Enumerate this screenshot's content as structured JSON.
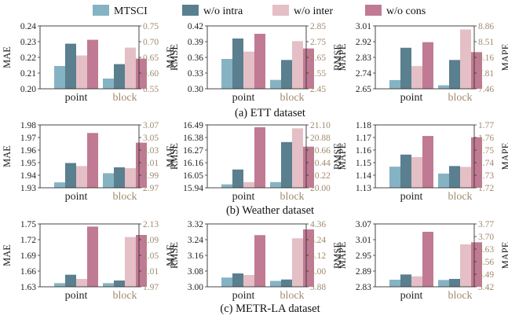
{
  "legend": [
    {
      "label": "MTSCI",
      "color": "#85b3c3"
    },
    {
      "label": "w/o intra",
      "color": "#5a7f8f"
    },
    {
      "label": "w/o inter",
      "color": "#e4bfc6"
    },
    {
      "label": "w/o cons",
      "color": "#c17a93"
    }
  ],
  "colors": {
    "left_axis": "#222222",
    "right_axis": "#a08a6e",
    "block_tick": "#a08a6e"
  },
  "datasets": [
    {
      "caption": "(a) ETT dataset"
    },
    {
      "caption": "(b) Weather dataset"
    },
    {
      "caption": "(c) METR-LA dataset"
    }
  ],
  "chart_data": [
    {
      "type": "bar",
      "ylabel": "MAE",
      "y2label": "MAE",
      "categories": [
        "point",
        "block"
      ],
      "ylim": [
        0.2,
        0.24
      ],
      "yticks": [
        "0.20",
        "0.21",
        "0.22",
        "0.23",
        "0.24"
      ],
      "y2ticks": [
        "0.55",
        "0.60",
        "0.65",
        "0.70",
        "0.75"
      ],
      "series": [
        {
          "name": "MTSCI",
          "values": [
            0.2145,
            0.2065
          ]
        },
        {
          "name": "w/o intra",
          "values": [
            0.2287,
            0.2157
          ]
        },
        {
          "name": "w/o inter",
          "values": [
            0.2212,
            0.2262
          ]
        },
        {
          "name": "w/o cons",
          "values": [
            0.2312,
            0.2192
          ]
        }
      ]
    },
    {
      "type": "bar",
      "ylabel": "RMSE",
      "y2label": "RMSE",
      "categories": [
        "point",
        "block"
      ],
      "ylim": [
        0.3,
        0.42
      ],
      "yticks": [
        "0.30",
        "0.33",
        "0.36",
        "0.39",
        "0.42"
      ],
      "y2ticks": [
        "2.45",
        "2.55",
        "2.65",
        "2.75",
        "2.85"
      ],
      "series": [
        {
          "name": "MTSCI",
          "values": [
            0.357,
            0.317
          ]
        },
        {
          "name": "w/o intra",
          "values": [
            0.396,
            0.355
          ]
        },
        {
          "name": "w/o inter",
          "values": [
            0.371,
            0.391
          ]
        },
        {
          "name": "w/o cons",
          "values": [
            0.405,
            0.377
          ]
        }
      ]
    },
    {
      "type": "bar",
      "ylabel": "MAPE",
      "y2label": "MAPE",
      "categories": [
        "point",
        "block"
      ],
      "ylim": [
        2.65,
        3.01
      ],
      "yticks": [
        "2.65",
        "2.74",
        "2.83",
        "2.92",
        "3.01"
      ],
      "y2ticks": [
        "7.46",
        "7.81",
        "8.16",
        "8.51",
        "8.86"
      ],
      "series": [
        {
          "name": "MTSCI",
          "values": [
            2.7,
            2.67
          ]
        },
        {
          "name": "w/o intra",
          "values": [
            2.885,
            2.815
          ]
        },
        {
          "name": "w/o inter",
          "values": [
            2.78,
            2.99
          ]
        },
        {
          "name": "w/o cons",
          "values": [
            2.917,
            2.86
          ]
        }
      ]
    },
    {
      "type": "bar",
      "ylabel": "MAE",
      "y2label": "MAE",
      "categories": [
        "point",
        "block"
      ],
      "ylim": [
        1.93,
        1.98
      ],
      "yticks": [
        "1.93",
        "1.94",
        "1.95",
        "1.96",
        "1.97",
        "1.98"
      ],
      "y2ticks": [
        "2.97",
        "2.99",
        "3.01",
        "3.03",
        "3.05",
        "3.07"
      ],
      "series": [
        {
          "name": "MTSCI",
          "values": [
            1.9343,
            1.9416
          ]
        },
        {
          "name": "w/o intra",
          "values": [
            1.9497,
            1.9463
          ]
        },
        {
          "name": "w/o inter",
          "values": [
            1.9473,
            1.9456
          ]
        },
        {
          "name": "w/o cons",
          "values": [
            1.9736,
            1.9659
          ]
        }
      ]
    },
    {
      "type": "bar",
      "ylabel": "RMSE",
      "y2label": "RMSE",
      "categories": [
        "point",
        "block"
      ],
      "ylim": [
        15.94,
        16.49
      ],
      "yticks": [
        "15.94",
        "16.05",
        "16.16",
        "16.27",
        "16.38",
        "16.49"
      ],
      "y2ticks": [
        "20.00",
        "20.22",
        "20.44",
        "20.66",
        "20.88",
        "21.10"
      ],
      "series": [
        {
          "name": "MTSCI",
          "values": [
            15.97,
            15.99
          ]
        },
        {
          "name": "w/o intra",
          "values": [
            16.1,
            16.34
          ]
        },
        {
          "name": "w/o inter",
          "values": [
            15.99,
            16.46
          ]
        },
        {
          "name": "w/o cons",
          "values": [
            16.47,
            16.3
          ]
        }
      ]
    },
    {
      "type": "bar",
      "ylabel": "MAPE",
      "y2label": "MAPE",
      "categories": [
        "point",
        "block"
      ],
      "ylim": [
        1.13,
        1.18
      ],
      "yticks": [
        "1.13",
        "1.14",
        "1.15",
        "1.16",
        "1.17",
        "1.18"
      ],
      "y2ticks": [
        "1.72",
        "1.73",
        "1.74",
        "1.75",
        "1.76",
        "1.77"
      ],
      "series": [
        {
          "name": "MTSCI",
          "values": [
            1.1468,
            1.1413
          ]
        },
        {
          "name": "w/o intra",
          "values": [
            1.1564,
            1.1473
          ]
        },
        {
          "name": "w/o inter",
          "values": [
            1.1544,
            1.1466
          ]
        },
        {
          "name": "w/o cons",
          "values": [
            1.1712,
            1.1702
          ]
        }
      ]
    },
    {
      "type": "bar",
      "ylabel": "MAE",
      "y2label": "MAE",
      "categories": [
        "point",
        "block"
      ],
      "ylim": [
        1.63,
        1.75
      ],
      "yticks": [
        "1.63",
        "1.66",
        "1.69",
        "1.72",
        "1.75"
      ],
      "y2ticks": [
        "1.97",
        "2.01",
        "2.05",
        "2.09",
        "2.13"
      ],
      "series": [
        {
          "name": "MTSCI",
          "values": [
            1.637,
            1.637
          ]
        },
        {
          "name": "w/o intra",
          "values": [
            1.653,
            1.642
          ]
        },
        {
          "name": "w/o inter",
          "values": [
            1.645,
            1.725
          ]
        },
        {
          "name": "w/o cons",
          "values": [
            1.745,
            1.729
          ]
        }
      ]
    },
    {
      "type": "bar",
      "ylabel": "RMSE",
      "y2label": "RMSE",
      "categories": [
        "point",
        "block"
      ],
      "ylim": [
        3.0,
        3.32
      ],
      "yticks": [
        "3.00",
        "3.08",
        "3.16",
        "3.24",
        "3.32"
      ],
      "y2ticks": [
        "3.88",
        "4.00",
        "4.12",
        "4.24",
        "4.36"
      ],
      "series": [
        {
          "name": "MTSCI",
          "values": [
            3.047,
            3.03
          ]
        },
        {
          "name": "w/o intra",
          "values": [
            3.068,
            3.037
          ]
        },
        {
          "name": "w/o inter",
          "values": [
            3.06,
            3.247
          ]
        },
        {
          "name": "w/o cons",
          "values": [
            3.263,
            3.292
          ]
        }
      ]
    },
    {
      "type": "bar",
      "ylabel": "MAPE",
      "y2label": "MAPE",
      "categories": [
        "point",
        "block"
      ],
      "ylim": [
        2.83,
        3.07
      ],
      "yticks": [
        "2.83",
        "2.89",
        "2.95",
        "3.01",
        "3.07"
      ],
      "y2ticks": [
        "3.42",
        "3.49",
        "3.56",
        "3.63",
        "3.70",
        "3.77"
      ],
      "series": [
        {
          "name": "MTSCI",
          "values": [
            2.857,
            2.856
          ]
        },
        {
          "name": "w/o intra",
          "values": [
            2.877,
            2.86
          ]
        },
        {
          "name": "w/o inter",
          "values": [
            2.87,
            2.992
          ]
        },
        {
          "name": "w/o cons",
          "values": [
            3.04,
            3.0
          ]
        }
      ]
    }
  ]
}
